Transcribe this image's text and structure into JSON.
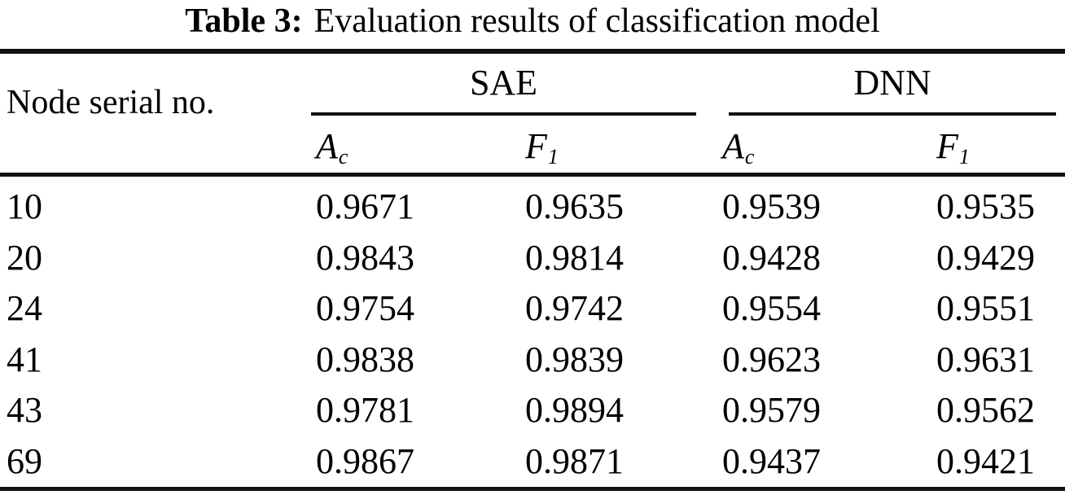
{
  "table": {
    "title": {
      "label": "Table 3:",
      "text": "Evaluation results of classification model"
    },
    "row_header": "Node serial no.",
    "groups": [
      {
        "label": "SAE"
      },
      {
        "label": "DNN"
      }
    ],
    "subheaders": [
      {
        "base": "A",
        "sub": "c"
      },
      {
        "base": "F",
        "sub": "1"
      },
      {
        "base": "A",
        "sub": "c"
      },
      {
        "base": "F",
        "sub": "1"
      }
    ],
    "rows": [
      {
        "node": "10",
        "sae_ac": "0.9671",
        "sae_f1": "0.9635",
        "dnn_ac": "0.9539",
        "dnn_f1": "0.9535"
      },
      {
        "node": "20",
        "sae_ac": "0.9843",
        "sae_f1": "0.9814",
        "dnn_ac": "0.9428",
        "dnn_f1": "0.9429"
      },
      {
        "node": "24",
        "sae_ac": "0.9754",
        "sae_f1": "0.9742",
        "dnn_ac": "0.9554",
        "dnn_f1": "0.9551"
      },
      {
        "node": "41",
        "sae_ac": "0.9838",
        "sae_f1": "0.9839",
        "dnn_ac": "0.9623",
        "dnn_f1": "0.9631"
      },
      {
        "node": "43",
        "sae_ac": "0.9781",
        "sae_f1": "0.9894",
        "dnn_ac": "0.9579",
        "dnn_f1": "0.9562"
      },
      {
        "node": "69",
        "sae_ac": "0.9867",
        "sae_f1": "0.9871",
        "dnn_ac": "0.9437",
        "dnn_f1": "0.9421"
      }
    ],
    "colors": {
      "text": "#000000",
      "rule": "#111111",
      "background": "#ffffff"
    }
  }
}
